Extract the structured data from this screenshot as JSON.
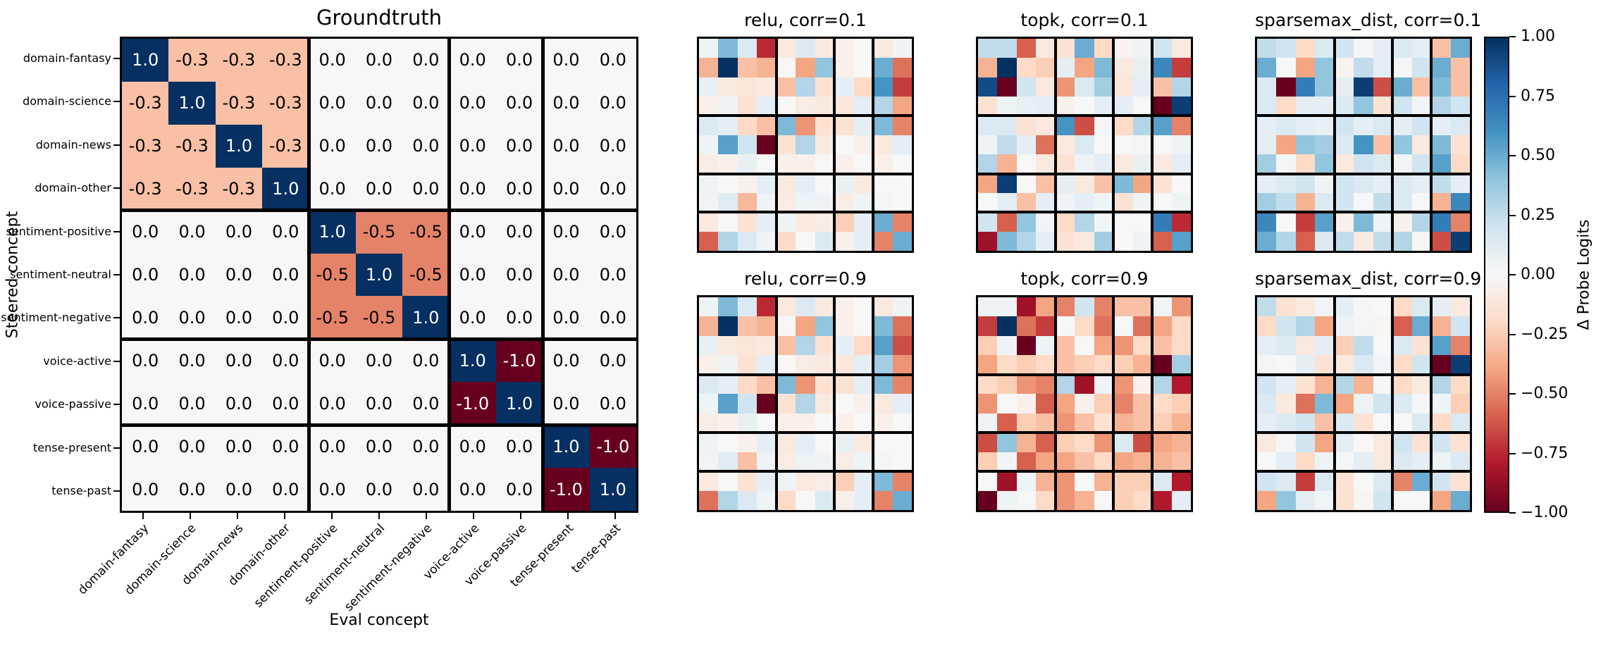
{
  "figure": {
    "background": "#ffffff",
    "colormap": "RdBu",
    "colormap_stops": [
      "#67001f",
      "#b2182b",
      "#d6604d",
      "#f4a582",
      "#fddbc7",
      "#f7f7f7",
      "#d1e5f0",
      "#92c5de",
      "#4393c3",
      "#2166ac",
      "#053061"
    ],
    "colorbar": {
      "label": "Δ Probe Logits",
      "ticks": [
        {
          "v": 1.0,
          "label": "1.00"
        },
        {
          "v": 0.75,
          "label": "0.75"
        },
        {
          "v": 0.5,
          "label": "0.50"
        },
        {
          "v": 0.25,
          "label": "0.25"
        },
        {
          "v": 0.0,
          "label": "0.00"
        },
        {
          "v": -0.25,
          "label": "−0.25"
        },
        {
          "v": -0.5,
          "label": "−0.50"
        },
        {
          "v": -0.75,
          "label": "−0.75"
        },
        {
          "v": -1.0,
          "label": "−1.00"
        }
      ]
    }
  },
  "chart_data": [
    {
      "type": "heatmap",
      "title": "Groundtruth",
      "xlabel": "Eval concept",
      "ylabel": "Steered concept",
      "vmin": -1,
      "vmax": 1,
      "annotated": true,
      "block_boundaries": [
        4,
        7,
        9
      ],
      "x_categories": [
        "domain-fantasy",
        "domain-science",
        "domain-news",
        "domain-other",
        "sentiment-positive",
        "sentiment-neutral",
        "sentiment-negative",
        "voice-active",
        "voice-passive",
        "tense-present",
        "tense-past"
      ],
      "y_categories": [
        "domain-fantasy",
        "domain-science",
        "domain-news",
        "domain-other",
        "sentiment-positive",
        "sentiment-neutral",
        "sentiment-negative",
        "voice-active",
        "voice-passive",
        "tense-present",
        "tense-past"
      ],
      "values": [
        [
          1.0,
          -0.3,
          -0.3,
          -0.3,
          0.0,
          0.0,
          0.0,
          0.0,
          0.0,
          0.0,
          0.0
        ],
        [
          -0.3,
          1.0,
          -0.3,
          -0.3,
          0.0,
          0.0,
          0.0,
          0.0,
          0.0,
          0.0,
          0.0
        ],
        [
          -0.3,
          -0.3,
          1.0,
          -0.3,
          0.0,
          0.0,
          0.0,
          0.0,
          0.0,
          0.0,
          0.0
        ],
        [
          -0.3,
          -0.3,
          -0.3,
          1.0,
          0.0,
          0.0,
          0.0,
          0.0,
          0.0,
          0.0,
          0.0
        ],
        [
          0.0,
          0.0,
          0.0,
          0.0,
          1.0,
          -0.5,
          -0.5,
          0.0,
          0.0,
          0.0,
          0.0
        ],
        [
          0.0,
          0.0,
          0.0,
          0.0,
          -0.5,
          1.0,
          -0.5,
          0.0,
          0.0,
          0.0,
          0.0
        ],
        [
          0.0,
          0.0,
          0.0,
          0.0,
          -0.5,
          -0.5,
          1.0,
          0.0,
          0.0,
          0.0,
          0.0
        ],
        [
          0.0,
          0.0,
          0.0,
          0.0,
          0.0,
          0.0,
          0.0,
          1.0,
          -1.0,
          0.0,
          0.0
        ],
        [
          0.0,
          0.0,
          0.0,
          0.0,
          0.0,
          0.0,
          0.0,
          -1.0,
          1.0,
          0.0,
          0.0
        ],
        [
          0.0,
          0.0,
          0.0,
          0.0,
          0.0,
          0.0,
          0.0,
          0.0,
          0.0,
          1.0,
          -1.0
        ],
        [
          0.0,
          0.0,
          0.0,
          0.0,
          0.0,
          0.0,
          0.0,
          0.0,
          0.0,
          -1.0,
          1.0
        ]
      ]
    },
    {
      "type": "heatmap",
      "title": "relu, corr=0.1",
      "vmin": -1,
      "vmax": 1,
      "annotated": false,
      "block_boundaries": [
        4,
        7,
        9
      ],
      "values": [
        [
          0.05,
          0.45,
          0.15,
          -0.75,
          -0.1,
          0.15,
          -0.1,
          -0.05,
          0.0,
          -0.1,
          0.05
        ],
        [
          -0.35,
          1.0,
          -0.3,
          -0.35,
          0.0,
          -0.4,
          0.4,
          -0.05,
          0.0,
          0.5,
          -0.55
        ],
        [
          0.08,
          -0.1,
          -0.12,
          -0.1,
          -0.3,
          0.3,
          -0.15,
          0.1,
          -0.2,
          0.6,
          -0.7
        ],
        [
          -0.05,
          0.05,
          -0.15,
          0.1,
          0.0,
          -0.08,
          -0.1,
          -0.12,
          0.1,
          0.3,
          -0.4
        ],
        [
          0.15,
          0.1,
          -0.2,
          -0.3,
          0.45,
          -0.45,
          -0.15,
          -0.15,
          0.1,
          0.45,
          -0.5
        ],
        [
          0.05,
          0.55,
          0.2,
          -1.0,
          -0.15,
          0.3,
          -0.1,
          0.0,
          -0.05,
          -0.1,
          0.1
        ],
        [
          -0.08,
          -0.05,
          0.08,
          0.0,
          -0.05,
          -0.05,
          0.0,
          -0.05,
          0.0,
          -0.05,
          0.0
        ],
        [
          0.05,
          0.0,
          -0.05,
          0.1,
          -0.1,
          0.1,
          0.0,
          0.08,
          -0.1,
          0.0,
          0.0
        ],
        [
          0.03,
          0.12,
          -0.33,
          0.05,
          -0.08,
          0.06,
          0.04,
          -0.08,
          0.05,
          0.02,
          0.0
        ],
        [
          -0.1,
          0.0,
          -0.15,
          0.1,
          0.05,
          -0.1,
          -0.08,
          -0.25,
          0.1,
          0.5,
          -0.5
        ],
        [
          -0.6,
          0.3,
          0.15,
          0.05,
          -0.2,
          0.0,
          0.15,
          -0.05,
          0.1,
          -0.5,
          0.5
        ]
      ]
    },
    {
      "type": "heatmap",
      "title": "topk, corr=0.1",
      "vmin": -1,
      "vmax": 1,
      "annotated": false,
      "block_boundaries": [
        4,
        7,
        9
      ],
      "values": [
        [
          0.25,
          0.25,
          -0.6,
          -0.1,
          -0.15,
          0.5,
          -0.2,
          -0.03,
          0.05,
          0.2,
          -0.1
        ],
        [
          -0.35,
          1.0,
          -0.2,
          -0.25,
          0.1,
          -0.4,
          0.45,
          -0.1,
          0.08,
          0.65,
          -0.7
        ],
        [
          0.9,
          -1.0,
          0.2,
          -0.1,
          -0.45,
          0.15,
          0.35,
          -0.12,
          0.1,
          -0.3,
          0.3
        ],
        [
          -0.15,
          0.05,
          0.08,
          0.1,
          -0.05,
          0.0,
          0.1,
          0.1,
          0.0,
          -1.0,
          0.95
        ],
        [
          0.15,
          0.15,
          -0.15,
          -0.1,
          0.6,
          -0.65,
          0.02,
          -0.2,
          0.3,
          0.55,
          -0.5
        ],
        [
          0.05,
          0.25,
          0.1,
          -0.55,
          -0.1,
          0.15,
          0.0,
          0.0,
          0.02,
          0.0,
          0.05
        ],
        [
          0.3,
          -0.35,
          0.0,
          -0.1,
          -0.15,
          0.05,
          0.1,
          -0.1,
          0.08,
          -0.1,
          0.1
        ],
        [
          -0.4,
          0.95,
          0.0,
          -0.3,
          0.1,
          -0.1,
          -0.3,
          0.45,
          -0.4,
          -0.15,
          0.0
        ],
        [
          0.0,
          0.1,
          -0.3,
          0.1,
          0.05,
          0.1,
          0.05,
          -0.15,
          0.05,
          0.0,
          0.05
        ],
        [
          0.2,
          -0.6,
          0.4,
          0.03,
          -0.2,
          0.3,
          0.03,
          0.0,
          0.0,
          0.7,
          -0.75
        ],
        [
          -0.85,
          0.45,
          0.3,
          0.1,
          -0.15,
          -0.1,
          0.35,
          0.0,
          0.05,
          -0.6,
          0.55
        ]
      ]
    },
    {
      "type": "heatmap",
      "title": "sparsemax_dist, corr=0.1",
      "vmin": -1,
      "vmax": 1,
      "annotated": false,
      "block_boundaries": [
        4,
        7,
        9
      ],
      "values": [
        [
          0.25,
          0.2,
          -0.2,
          0.15,
          0.2,
          0.02,
          0.1,
          0.15,
          0.1,
          -0.3,
          0.5
        ],
        [
          0.5,
          0.0,
          -0.4,
          0.4,
          -0.03,
          0.25,
          0.1,
          0.02,
          0.2,
          0.5,
          -0.3
        ],
        [
          0.15,
          -1.0,
          0.7,
          0.4,
          0.1,
          0.95,
          -0.65,
          0.5,
          -0.3,
          0.45,
          -0.3
        ],
        [
          0.15,
          -0.2,
          0.1,
          0.1,
          0.15,
          0.4,
          -0.15,
          0.2,
          0.03,
          0.3,
          0.2
        ],
        [
          0.1,
          0.15,
          0.1,
          0.08,
          0.2,
          0.1,
          0.15,
          0.1,
          0.2,
          0.1,
          0.15
        ],
        [
          0.1,
          -0.4,
          0.4,
          0.35,
          0.15,
          0.6,
          -0.3,
          0.4,
          -0.1,
          0.45,
          -0.15
        ],
        [
          0.35,
          0.02,
          -0.2,
          0.4,
          -0.1,
          0.2,
          0.15,
          0.03,
          0.2,
          0.55,
          -0.2
        ],
        [
          0.1,
          0.15,
          0.2,
          0.05,
          0.2,
          0.15,
          0.1,
          0.15,
          0.1,
          0.25,
          0.1
        ],
        [
          0.35,
          0.25,
          -0.35,
          0.15,
          0.2,
          0.0,
          0.25,
          0.15,
          0.0,
          -0.35,
          0.65
        ],
        [
          0.65,
          0.0,
          -0.7,
          0.55,
          -0.05,
          0.45,
          0.05,
          -0.05,
          0.3,
          0.7,
          -0.5
        ],
        [
          0.5,
          0.3,
          -0.6,
          0.15,
          0.25,
          -0.1,
          0.25,
          0.3,
          -0.02,
          -0.65,
          0.95
        ]
      ]
    },
    {
      "type": "heatmap",
      "title": "relu, corr=0.9",
      "vmin": -1,
      "vmax": 1,
      "annotated": false,
      "block_boundaries": [
        4,
        7,
        9
      ],
      "values": [
        [
          0.05,
          0.45,
          0.15,
          -0.75,
          -0.1,
          0.15,
          -0.1,
          -0.05,
          0.0,
          -0.1,
          0.05
        ],
        [
          -0.35,
          1.0,
          -0.3,
          -0.35,
          0.0,
          -0.4,
          0.4,
          -0.05,
          0.0,
          0.45,
          -0.55
        ],
        [
          0.08,
          -0.1,
          -0.12,
          -0.1,
          -0.3,
          0.3,
          -0.15,
          0.1,
          -0.2,
          0.55,
          -0.65
        ],
        [
          -0.05,
          0.05,
          -0.15,
          0.1,
          0.0,
          -0.08,
          -0.1,
          -0.12,
          0.1,
          0.35,
          -0.45
        ],
        [
          0.15,
          0.1,
          -0.2,
          -0.3,
          0.45,
          -0.45,
          -0.15,
          -0.15,
          0.1,
          0.45,
          -0.5
        ],
        [
          0.05,
          0.55,
          0.2,
          -1.0,
          -0.15,
          0.3,
          -0.1,
          0.0,
          -0.05,
          -0.1,
          0.1
        ],
        [
          -0.08,
          -0.05,
          0.08,
          0.0,
          -0.05,
          -0.05,
          0.0,
          -0.05,
          0.0,
          -0.05,
          0.0
        ],
        [
          0.05,
          0.0,
          -0.05,
          0.1,
          -0.1,
          0.1,
          0.0,
          0.08,
          -0.1,
          0.0,
          0.0
        ],
        [
          0.03,
          0.12,
          -0.3,
          0.05,
          -0.08,
          0.06,
          0.04,
          -0.08,
          0.05,
          0.02,
          0.0
        ],
        [
          -0.1,
          0.0,
          -0.15,
          0.1,
          0.05,
          -0.1,
          -0.08,
          -0.25,
          0.1,
          0.45,
          -0.5
        ],
        [
          -0.55,
          0.3,
          0.15,
          0.05,
          -0.2,
          0.0,
          0.15,
          -0.05,
          0.1,
          -0.5,
          0.5
        ]
      ]
    },
    {
      "type": "heatmap",
      "title": "topk, corr=0.9",
      "vmin": -1,
      "vmax": 1,
      "annotated": false,
      "block_boundaries": [
        4,
        7,
        9
      ],
      "values": [
        [
          0.05,
          0.05,
          -0.85,
          -0.4,
          -0.5,
          0.2,
          -0.5,
          -0.3,
          -0.3,
          0.03,
          -0.45
        ],
        [
          -0.7,
          1.0,
          -0.55,
          -0.7,
          0.0,
          -0.2,
          -0.55,
          0.0,
          -0.55,
          -0.4,
          -0.2
        ],
        [
          -0.25,
          0.05,
          -1.0,
          0.05,
          -0.3,
          0.0,
          -0.4,
          -0.45,
          -0.2,
          -0.3,
          -0.2
        ],
        [
          -0.4,
          -0.2,
          -0.25,
          -0.2,
          -0.3,
          -0.25,
          -0.2,
          -0.25,
          -0.35,
          -1.0,
          0.35
        ],
        [
          -0.2,
          -0.25,
          -0.45,
          -0.5,
          0.3,
          -0.85,
          0.05,
          -0.45,
          -0.05,
          0.3,
          -0.8
        ],
        [
          -0.45,
          0.0,
          -0.05,
          -0.6,
          -0.4,
          -0.05,
          -0.25,
          -0.5,
          -0.3,
          -0.2,
          -0.25
        ],
        [
          0.05,
          -0.6,
          -0.25,
          -0.3,
          -0.45,
          -0.3,
          -0.15,
          -0.35,
          -0.3,
          -0.25,
          -0.35
        ],
        [
          -0.65,
          0.4,
          -0.35,
          -0.6,
          -0.25,
          -0.2,
          -0.45,
          0.15,
          -0.65,
          -0.4,
          -0.35
        ],
        [
          -0.25,
          0.03,
          -0.6,
          -0.4,
          -0.4,
          -0.3,
          -0.2,
          -0.4,
          -0.35,
          -0.35,
          -0.3
        ],
        [
          0.0,
          -0.85,
          0.05,
          -0.35,
          -0.45,
          0.0,
          -0.35,
          -0.25,
          -0.25,
          0.15,
          -0.8
        ],
        [
          -1.0,
          0.05,
          0.0,
          -0.2,
          -0.45,
          -0.35,
          0.0,
          -0.25,
          -0.2,
          -0.8,
          0.1
        ]
      ]
    },
    {
      "type": "heatmap",
      "title": "sparsemax_dist, corr=0.9",
      "vmin": -1,
      "vmax": 1,
      "annotated": false,
      "block_boundaries": [
        4,
        7,
        9
      ],
      "values": [
        [
          0.25,
          -0.15,
          -0.1,
          0.03,
          0.1,
          0.02,
          0.0,
          -0.2,
          0.15,
          0.1,
          -0.1
        ],
        [
          -0.2,
          0.2,
          0.3,
          -0.4,
          0.05,
          0.02,
          -0.02,
          -0.6,
          0.5,
          -0.35,
          0.2
        ],
        [
          0.1,
          0.15,
          -0.1,
          0.1,
          -0.25,
          0.25,
          0.0,
          0.15,
          -0.15,
          0.55,
          -0.5
        ],
        [
          0.02,
          0.0,
          0.1,
          -0.15,
          -0.1,
          0.15,
          0.03,
          -0.2,
          0.2,
          -1.0,
          0.95
        ],
        [
          0.2,
          0.1,
          -0.15,
          -0.35,
          0.3,
          -0.35,
          0.02,
          -0.2,
          -0.1,
          0.3,
          -0.2
        ],
        [
          0.15,
          -0.1,
          -0.55,
          0.45,
          -0.4,
          0.05,
          0.2,
          0.15,
          0.02,
          0.05,
          -0.25
        ],
        [
          0.1,
          0.15,
          0.2,
          -0.3,
          0.15,
          -0.15,
          0.0,
          0.0,
          0.15,
          -0.2,
          0.15
        ],
        [
          -0.1,
          0.02,
          0.2,
          -0.4,
          0.1,
          0.0,
          -0.1,
          0.2,
          -0.15,
          0.2,
          -0.15
        ],
        [
          0.0,
          0.1,
          -0.2,
          0.05,
          0.02,
          0.1,
          -0.1,
          0.15,
          0.1,
          0.05,
          0.15
        ],
        [
          0.2,
          0.15,
          -0.7,
          0.15,
          -0.15,
          0.0,
          0.15,
          -0.5,
          0.5,
          0.2,
          -0.15
        ],
        [
          -0.4,
          0.4,
          0.1,
          0.03,
          -0.15,
          -0.02,
          0.2,
          0.0,
          0.0,
          -0.4,
          0.5
        ]
      ]
    }
  ]
}
